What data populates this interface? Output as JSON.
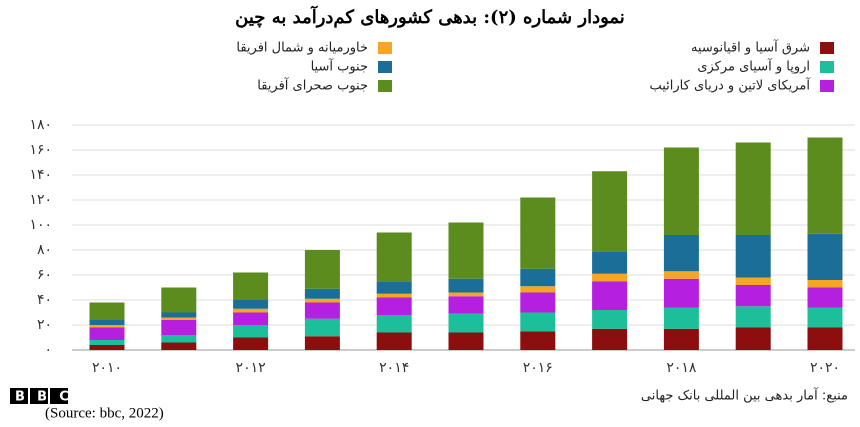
{
  "chart_data": {
    "type": "bar",
    "title": "نمودار شماره (۲): بدهی کشورهای کم‌درآمد به چین",
    "categories": [
      "۲۰۱۰",
      null,
      "۲۰۱۲",
      null,
      "۲۰۱۴",
      null,
      "۲۰۱۶",
      null,
      "۲۰۱۸",
      null,
      "۲۰۲۰"
    ],
    "series": [
      {
        "name": "شرق آسیا و اقیانوسیه",
        "color": "#8c0e0e",
        "values": [
          4,
          6,
          10,
          11,
          14,
          14,
          15,
          17,
          17,
          18,
          18
        ]
      },
      {
        "name": "اروپا و آسیای مرکزی",
        "color": "#1dbf9a",
        "values": [
          4,
          6,
          10,
          14,
          14,
          15,
          15,
          15,
          17,
          17,
          16
        ]
      },
      {
        "name": "آمریکای لاتین و دریای کارائیب",
        "color": "#b520e0",
        "values": [
          10,
          12,
          10,
          13,
          14,
          14,
          16,
          23,
          23,
          17,
          16
        ]
      },
      {
        "name": "خاورمیانه و شمال افریقا",
        "color": "#f5a623",
        "values": [
          2,
          2,
          3,
          3,
          3,
          3,
          5,
          6,
          6,
          6,
          6
        ]
      },
      {
        "name": "جنوب آسیا",
        "color": "#1b6e98",
        "values": [
          4,
          4,
          7,
          8,
          10,
          11,
          14,
          18,
          29,
          34,
          37
        ]
      },
      {
        "name": "جنوب صحرای آفریقا",
        "color": "#5b8c1d",
        "values": [
          14,
          20,
          22,
          31,
          39,
          45,
          57,
          64,
          70,
          74,
          77
        ]
      }
    ],
    "stacked": true,
    "ylim": [
      0,
      180
    ],
    "yticks": [
      {
        "value": 0,
        "label": "۰"
      },
      {
        "value": 20,
        "label": "۲۰"
      },
      {
        "value": 40,
        "label": "۴۰"
      },
      {
        "value": 60,
        "label": "۶۰"
      },
      {
        "value": 80,
        "label": "۸۰"
      },
      {
        "value": 100,
        "label": "۱۰۰"
      },
      {
        "value": 120,
        "label": "۱۲۰"
      },
      {
        "value": 140,
        "label": "۱۴۰"
      },
      {
        "value": 160,
        "label": "۱۶۰"
      },
      {
        "value": 180,
        "label": "۱۸۰"
      }
    ],
    "grid": true,
    "source": "منبع: آمار بدهی بین المللی بانک جهانی",
    "logo": "BBC",
    "caption": "(Source: bbc, 2022)"
  }
}
